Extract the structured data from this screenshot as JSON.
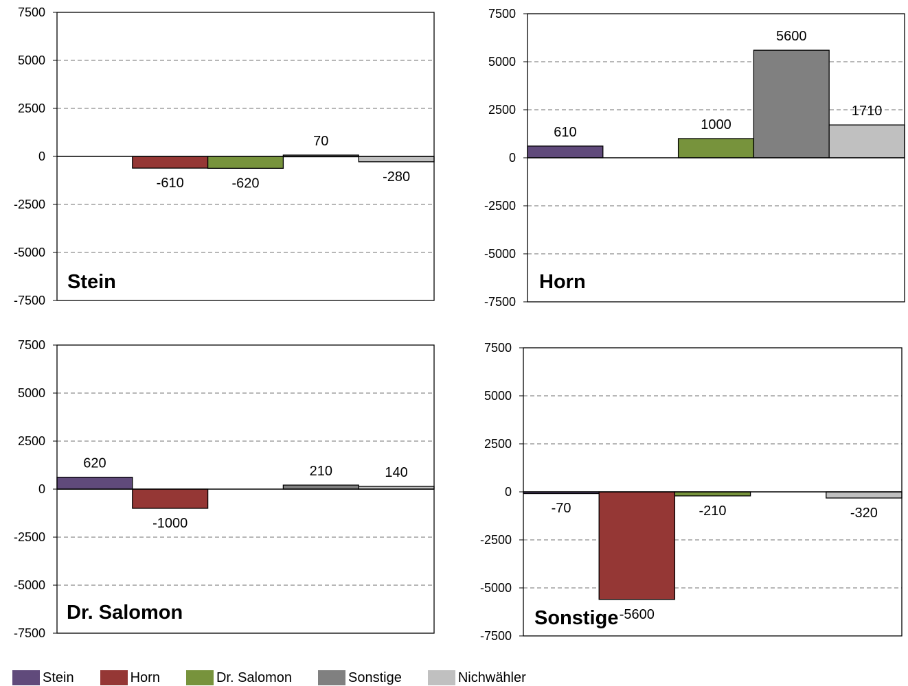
{
  "chart_data": [
    {
      "type": "bar",
      "title": "Stein",
      "categories": [
        "Stein",
        "Horn",
        "Dr. Salomon",
        "Sonstige",
        "Nichwähler"
      ],
      "values": [
        null,
        -610,
        -620,
        70,
        -280
      ],
      "data_labels": [
        "",
        "-610",
        "-620",
        "70",
        "-280"
      ],
      "ylim": [
        -7500,
        7500
      ],
      "yticks": [
        "7500",
        "5000",
        "2500",
        "0",
        "-2500",
        "-5000",
        "-7500"
      ],
      "grid": "dashed horizontal"
    },
    {
      "type": "bar",
      "title": "Horn",
      "categories": [
        "Stein",
        "Horn",
        "Dr. Salomon",
        "Sonstige",
        "Nichwähler"
      ],
      "values": [
        610,
        null,
        1000,
        5600,
        1710
      ],
      "data_labels": [
        "610",
        "",
        "1000",
        "5600",
        "1710"
      ],
      "ylim": [
        -7500,
        7500
      ],
      "yticks": [
        "7500",
        "5000",
        "2500",
        "0",
        "-2500",
        "-5000",
        "-7500"
      ],
      "grid": "dashed horizontal"
    },
    {
      "type": "bar",
      "title": "Dr. Salomon",
      "categories": [
        "Stein",
        "Horn",
        "Dr. Salomon",
        "Sonstige",
        "Nichwähler"
      ],
      "values": [
        620,
        -1000,
        null,
        210,
        140
      ],
      "data_labels": [
        "620",
        "-1000",
        "",
        "210",
        "140"
      ],
      "ylim": [
        -7500,
        7500
      ],
      "yticks": [
        "7500",
        "5000",
        "2500",
        "0",
        "-2500",
        "-5000",
        "-7500"
      ],
      "grid": "dashed horizontal"
    },
    {
      "type": "bar",
      "title": "Sonstige",
      "categories": [
        "Stein",
        "Horn",
        "Dr. Salomon",
        "Sonstige",
        "Nichwähler"
      ],
      "values": [
        -70,
        -5600,
        -210,
        null,
        -320
      ],
      "data_labels": [
        "-70",
        "-5600",
        "-210",
        "",
        "-320"
      ],
      "ylim": [
        -7500,
        7500
      ],
      "yticks": [
        "7500",
        "5000",
        "2500",
        "0",
        "-2500",
        "-5000",
        "-7500"
      ],
      "grid": "dashed horizontal"
    }
  ],
  "legend": {
    "placement": "bottom",
    "items": [
      {
        "label": "Stein",
        "color": "#604a7b"
      },
      {
        "label": "Horn",
        "color": "#953735"
      },
      {
        "label": "Dr. Salomon",
        "color": "#77933c"
      },
      {
        "label": "Sonstige",
        "color": "#808080"
      },
      {
        "label": "Nichwähler",
        "color": "#c0c0c0"
      }
    ]
  }
}
